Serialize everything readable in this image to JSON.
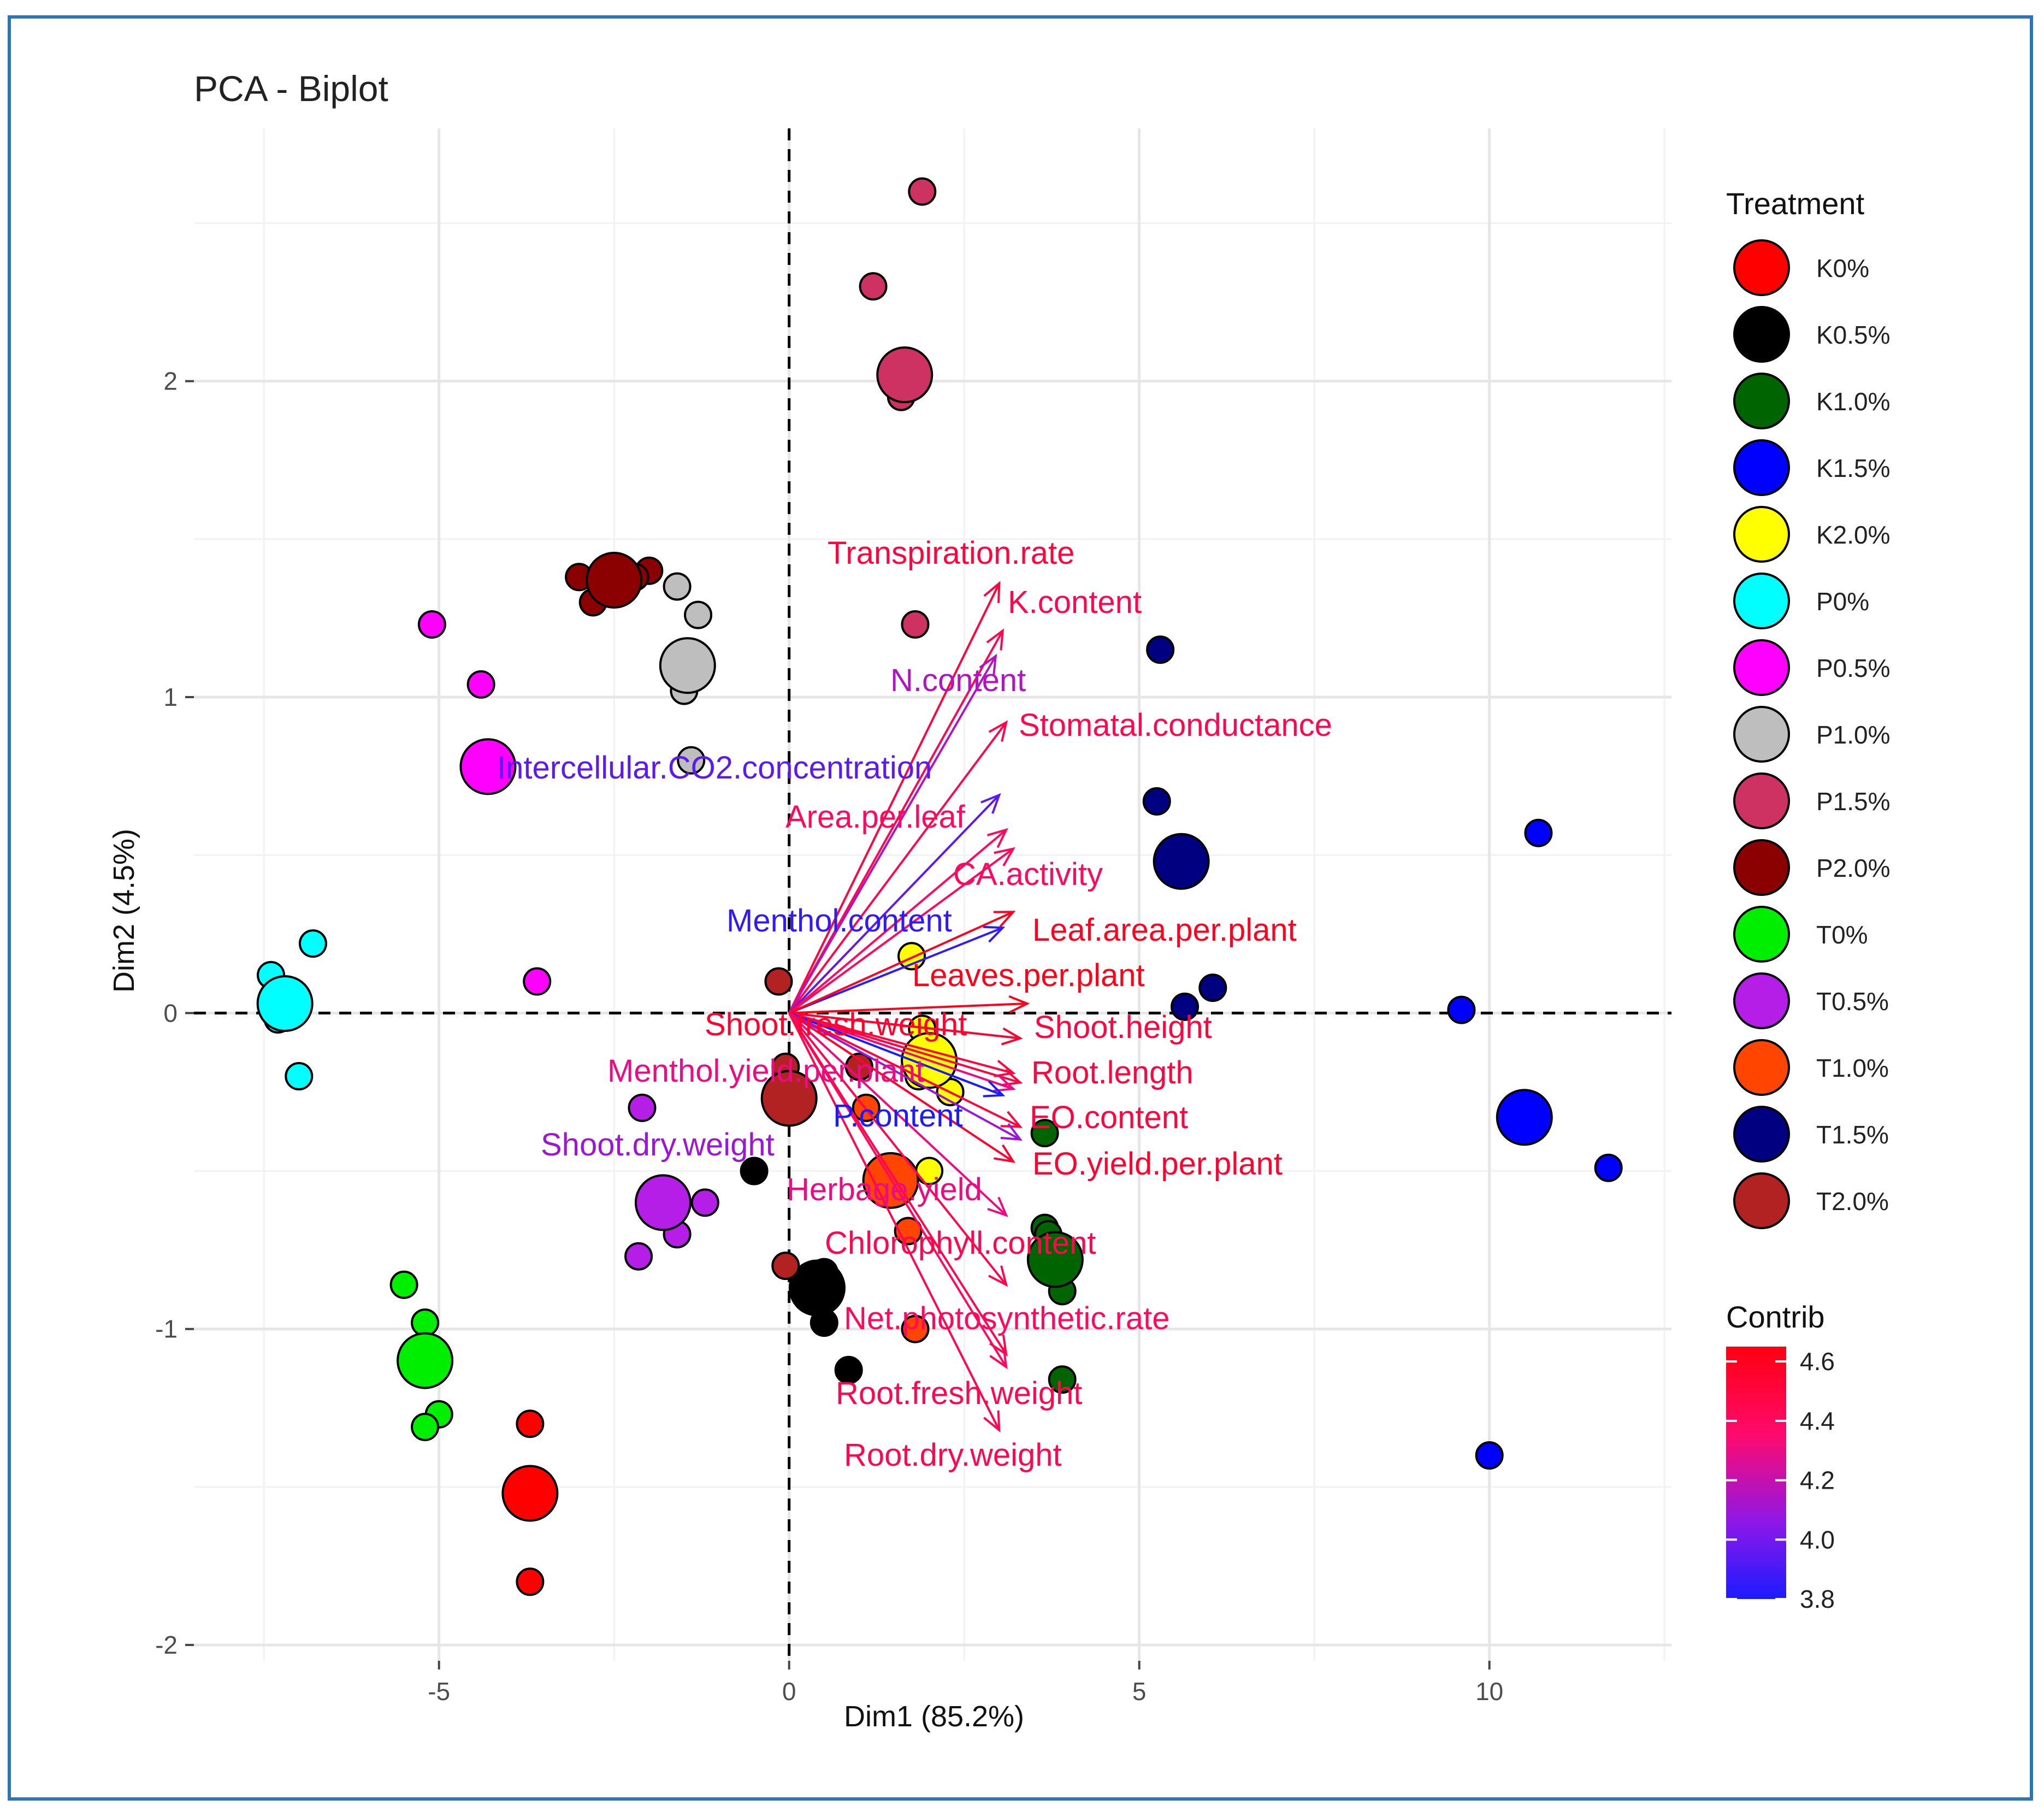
{
  "chart_data": {
    "type": "scatter",
    "title": "PCA - Biplot",
    "xlabel": "Dim1 (85.2%)",
    "ylabel": "Dim2 (4.5%)",
    "xlim": [
      -8.5,
      12.6
    ],
    "ylim": [
      -2.05,
      2.8
    ],
    "x_ticks": [
      -5,
      0,
      5,
      10
    ],
    "x_tick_labels": [
      "-5",
      "0",
      "5",
      "10"
    ],
    "y_ticks": [
      -2,
      -1,
      0,
      1,
      2
    ],
    "y_tick_labels": [
      "-2",
      "-1",
      "0",
      "1",
      "2"
    ],
    "grid": true,
    "legend_placement": "right",
    "legend_title": "Treatment",
    "contrib_legend": {
      "title": "Contrib",
      "range": [
        3.8,
        4.65
      ],
      "ticks": [
        "4.6",
        "4.4",
        "4.2",
        "4.0",
        "3.8"
      ],
      "tick_values": [
        4.6,
        4.4,
        4.2,
        4.0,
        3.8
      ],
      "colors": [
        "#1b1bff",
        "#8c18e8",
        "#ff0a6e",
        "#ff0010"
      ]
    },
    "series": [
      {
        "name": "K0%",
        "color": "#ff0000",
        "points": [
          [
            -3.7,
            -1.3
          ],
          [
            -3.75,
            -1.48
          ],
          [
            -3.7,
            -1.8
          ]
        ],
        "centroid": [
          -3.7,
          -1.52
        ]
      },
      {
        "name": "K0.5%",
        "color": "#000000",
        "points": [
          [
            -0.5,
            -0.5
          ],
          [
            0.5,
            -0.98
          ],
          [
            0.85,
            -1.13
          ],
          [
            0.5,
            -0.82
          ]
        ],
        "centroid": [
          0.4,
          -0.87
        ]
      },
      {
        "name": "K1.0%",
        "color": "#006400",
        "points": [
          [
            3.65,
            -0.38
          ],
          [
            3.65,
            -0.68
          ],
          [
            3.9,
            -0.88
          ],
          [
            3.9,
            -1.16
          ],
          [
            3.7,
            -0.7
          ]
        ],
        "centroid": [
          3.8,
          -0.78
        ]
      },
      {
        "name": "K1.5%",
        "color": "#0000ff",
        "points": [
          [
            10.7,
            0.57
          ],
          [
            9.6,
            0.01
          ],
          [
            11.7,
            -0.49
          ],
          [
            10.0,
            -1.4
          ]
        ],
        "centroid": [
          10.5,
          -0.33
        ]
      },
      {
        "name": "K2.0%",
        "color": "#ffff00",
        "points": [
          [
            1.75,
            0.18
          ],
          [
            1.9,
            -0.05
          ],
          [
            1.85,
            -0.2
          ],
          [
            2.3,
            -0.25
          ],
          [
            2.0,
            -0.5
          ]
        ],
        "centroid": [
          2.0,
          -0.15
        ]
      },
      {
        "name": "P0%",
        "color": "#00ffff",
        "points": [
          [
            -7.4,
            0.12
          ],
          [
            -6.8,
            0.22
          ],
          [
            -7.3,
            -0.02
          ],
          [
            -7.0,
            -0.2
          ]
        ],
        "centroid": [
          -7.2,
          0.03
        ]
      },
      {
        "name": "P0.5%",
        "color": "#ff00ff",
        "points": [
          [
            -5.1,
            1.23
          ],
          [
            -4.4,
            1.04
          ],
          [
            -3.6,
            0.1
          ]
        ],
        "centroid": [
          -4.3,
          0.78
        ]
      },
      {
        "name": "P1.0%",
        "color": "#bebebe",
        "points": [
          [
            -1.6,
            1.35
          ],
          [
            -1.3,
            1.26
          ],
          [
            -1.5,
            1.02
          ],
          [
            -1.4,
            0.8
          ]
        ],
        "centroid": [
          -1.45,
          1.1
        ]
      },
      {
        "name": "P1.5%",
        "color": "#cd3263",
        "points": [
          [
            1.9,
            2.6
          ],
          [
            1.2,
            2.3
          ],
          [
            1.6,
            1.95
          ],
          [
            1.8,
            1.23
          ]
        ],
        "centroid": [
          1.65,
          2.02
        ]
      },
      {
        "name": "P2.0%",
        "color": "#8b0000",
        "points": [
          [
            -3.0,
            1.38
          ],
          [
            -2.8,
            1.3
          ],
          [
            -2.0,
            1.4
          ],
          [
            -2.2,
            1.38
          ]
        ],
        "centroid": [
          -2.5,
          1.37
        ]
      },
      {
        "name": "T0%",
        "color": "#00ee00",
        "points": [
          [
            -5.5,
            -0.86
          ],
          [
            -5.2,
            -0.98
          ],
          [
            -5.0,
            -1.27
          ],
          [
            -5.2,
            -1.31
          ]
        ],
        "centroid": [
          -5.2,
          -1.1
        ]
      },
      {
        "name": "T0.5%",
        "color": "#b41ee6",
        "points": [
          [
            -2.1,
            -0.3
          ],
          [
            -1.2,
            -0.6
          ],
          [
            -1.6,
            -0.7
          ],
          [
            -2.15,
            -0.77
          ]
        ],
        "centroid": [
          -1.8,
          -0.6
        ]
      },
      {
        "name": "T1.0%",
        "color": "#ff4500",
        "points": [
          [
            1.1,
            -0.3
          ],
          [
            1.8,
            -1.0
          ],
          [
            1.7,
            -0.69
          ],
          [
            1.4,
            -0.5
          ]
        ],
        "centroid": [
          1.45,
          -0.53
        ]
      },
      {
        "name": "T1.5%",
        "color": "#000080",
        "points": [
          [
            5.3,
            1.15
          ],
          [
            5.25,
            0.67
          ],
          [
            6.05,
            0.08
          ],
          [
            5.65,
            0.02
          ]
        ],
        "centroid": [
          5.6,
          0.48
        ]
      },
      {
        "name": "T2.0%",
        "color": "#b22222",
        "points": [
          [
            -0.15,
            0.1
          ],
          [
            -0.05,
            -0.17
          ],
          [
            -0.05,
            -0.8
          ],
          [
            1.0,
            -0.17
          ]
        ],
        "centroid": [
          0.0,
          -0.27
        ]
      }
    ],
    "variables": [
      {
        "name": "Transpiration.rate",
        "x": 3.0,
        "y": 1.36,
        "contrib": 4.5
      },
      {
        "name": "K.content",
        "x": 3.05,
        "y": 1.21,
        "contrib": 4.45
      },
      {
        "name": "N.content",
        "x": 2.95,
        "y": 1.13,
        "contrib": 4.15
      },
      {
        "name": "Stomatal.conductance",
        "x": 3.1,
        "y": 0.92,
        "contrib": 4.45
      },
      {
        "name": "Intercellular.CO2.concentration",
        "x": 3.0,
        "y": 0.69,
        "contrib": 3.95
      },
      {
        "name": "Area.per.leaf",
        "x": 3.1,
        "y": 0.58,
        "contrib": 4.4
      },
      {
        "name": "CA.activity",
        "x": 3.2,
        "y": 0.52,
        "contrib": 4.4
      },
      {
        "name": "Menthol.content",
        "x": 3.05,
        "y": 0.27,
        "contrib": 3.85
      },
      {
        "name": "Leaf.area.per.plant",
        "x": 3.2,
        "y": 0.32,
        "contrib": 4.6
      },
      {
        "name": "Leaves.per.plant",
        "x": 3.4,
        "y": 0.03,
        "contrib": 4.62
      },
      {
        "name": "Shoot.fresh.weight",
        "x": 3.3,
        "y": -0.08,
        "contrib": 4.55
      },
      {
        "name": "Shoot.height",
        "x": 3.2,
        "y": -0.19,
        "contrib": 4.5
      },
      {
        "name": "Root.length",
        "x": 3.3,
        "y": -0.22,
        "contrib": 4.5
      },
      {
        "name": "Menthol.yield.per.plant",
        "x": 3.2,
        "y": -0.24,
        "contrib": 4.3
      },
      {
        "name": "P.content",
        "x": 3.05,
        "y": -0.26,
        "contrib": 3.8
      },
      {
        "name": "EO.content",
        "x": 3.3,
        "y": -0.36,
        "contrib": 4.5
      },
      {
        "name": "Shoot.dry.weight",
        "x": 3.3,
        "y": -0.4,
        "contrib": 4.1
      },
      {
        "name": "EO.yield.per.plant",
        "x": 3.2,
        "y": -0.47,
        "contrib": 4.55
      },
      {
        "name": "Herbage.yield",
        "x": 3.1,
        "y": -0.64,
        "contrib": 4.3
      },
      {
        "name": "Chlorophyll.content",
        "x": 3.1,
        "y": -0.86,
        "contrib": 4.45
      },
      {
        "name": "Net.photosynthetic.rate",
        "x": 3.1,
        "y": -1.12,
        "contrib": 4.4
      },
      {
        "name": "Root.fresh.weight",
        "x": 3.1,
        "y": -1.08,
        "contrib": 4.45
      },
      {
        "name": "Root.dry.weight",
        "x": 3.0,
        "y": -1.32,
        "contrib": 4.45
      }
    ]
  }
}
